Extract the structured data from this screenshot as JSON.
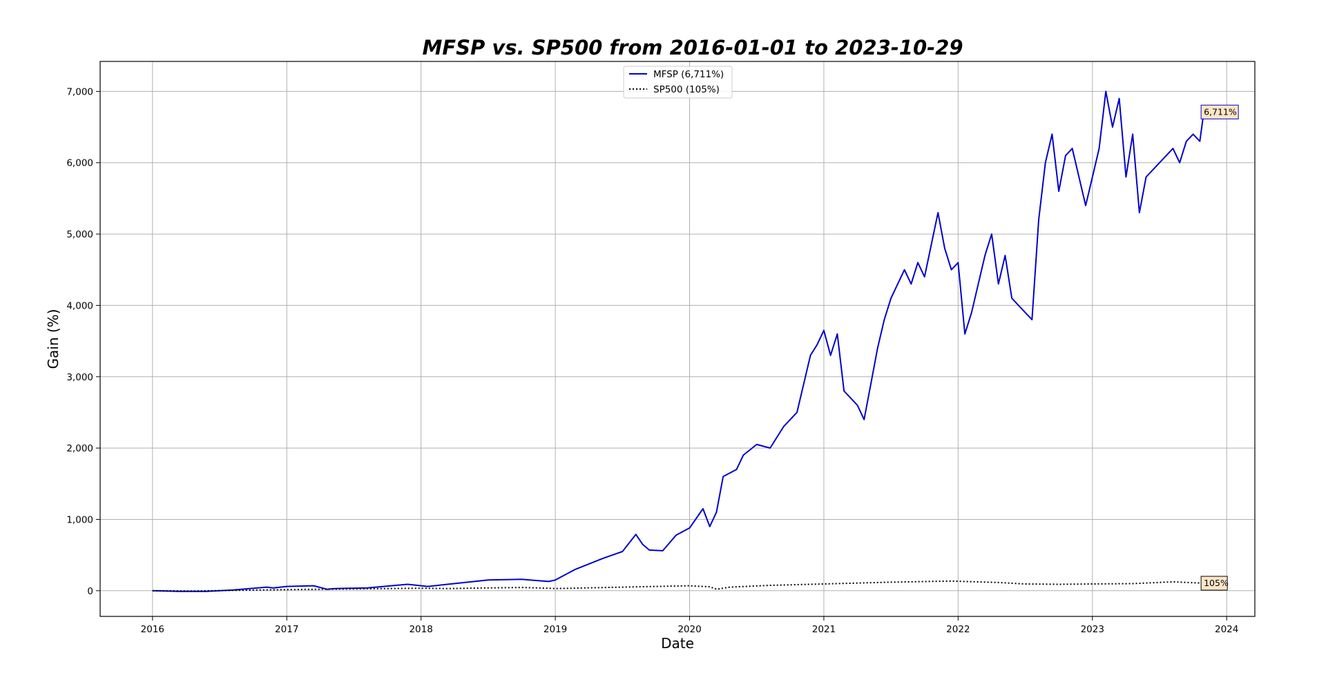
{
  "chart_data": {
    "type": "line",
    "title": "MFSP vs. SP500 from 2016-01-01 to 2023-10-29",
    "xlabel": "Date",
    "ylabel": "Gain (%)",
    "xlim": [
      2015.61,
      2024.21
    ],
    "ylim": [
      -360,
      7420
    ],
    "x_ticks": [
      2016,
      2017,
      2018,
      2019,
      2020,
      2021,
      2022,
      2023,
      2024
    ],
    "x_tick_labels": [
      "2016",
      "2017",
      "2018",
      "2019",
      "2020",
      "2021",
      "2022",
      "2023",
      "2024"
    ],
    "y_ticks": [
      0,
      1000,
      2000,
      3000,
      4000,
      5000,
      6000,
      7000
    ],
    "y_tick_labels": [
      "0",
      "1,000",
      "2,000",
      "3,000",
      "4,000",
      "5,000",
      "6,000",
      "7,000"
    ],
    "grid": true,
    "legend_position": "top-center",
    "series": [
      {
        "name": "MFSP (6,711%)",
        "color": "#0000cc",
        "style": "solid",
        "final_label": "6,711%",
        "x": [
          2016.0,
          2016.2,
          2016.4,
          2016.6,
          2016.85,
          2016.9,
          2017.0,
          2017.2,
          2017.3,
          2017.35,
          2017.6,
          2017.9,
          2018.05,
          2018.3,
          2018.5,
          2018.75,
          2018.95,
          2019.0,
          2019.15,
          2019.35,
          2019.5,
          2019.6,
          2019.65,
          2019.7,
          2019.8,
          2019.9,
          2020.0,
          2020.1,
          2020.15,
          2020.2,
          2020.25,
          2020.35,
          2020.4,
          2020.5,
          2020.6,
          2020.7,
          2020.8,
          2020.9,
          2020.95,
          2021.0,
          2021.05,
          2021.1,
          2021.15,
          2021.2,
          2021.25,
          2021.3,
          2021.35,
          2021.4,
          2021.45,
          2021.5,
          2021.6,
          2021.65,
          2021.7,
          2021.75,
          2021.85,
          2021.9,
          2021.95,
          2022.0,
          2022.05,
          2022.1,
          2022.2,
          2022.25,
          2022.3,
          2022.35,
          2022.4,
          2022.5,
          2022.55,
          2022.6,
          2022.65,
          2022.7,
          2022.75,
          2022.8,
          2022.85,
          2022.9,
          2022.95,
          2023.0,
          2023.05,
          2023.1,
          2023.15,
          2023.2,
          2023.25,
          2023.3,
          2023.35,
          2023.4,
          2023.5,
          2023.6,
          2023.65,
          2023.7,
          2023.75,
          2023.8,
          2023.83
        ],
        "values": [
          0,
          -10,
          -10,
          10,
          50,
          40,
          60,
          70,
          20,
          30,
          40,
          90,
          60,
          110,
          150,
          160,
          130,
          150,
          300,
          450,
          550,
          790,
          650,
          570,
          560,
          780,
          880,
          1150,
          900,
          1100,
          1600,
          1700,
          1900,
          2050,
          2000,
          2300,
          2500,
          3300,
          3450,
          3650,
          3300,
          3600,
          2800,
          2700,
          2600,
          2400,
          2900,
          3400,
          3800,
          4100,
          4500,
          4300,
          4600,
          4400,
          5300,
          4800,
          4500,
          4600,
          3600,
          3900,
          4700,
          5000,
          4300,
          4700,
          4100,
          3900,
          3800,
          5200,
          6000,
          6400,
          5600,
          6100,
          6200,
          5800,
          5400,
          5800,
          6200,
          7000,
          6500,
          6900,
          5800,
          6400,
          5300,
          5800,
          6000,
          6200,
          6000,
          6300,
          6400,
          6300,
          6711
        ]
      },
      {
        "name": "SP500 (105%)",
        "color": "#000000",
        "style": "dotted",
        "final_label": "105%",
        "x": [
          2016.0,
          2016.3,
          2016.6,
          2017.0,
          2017.5,
          2018.0,
          2018.2,
          2018.5,
          2018.75,
          2018.95,
          2019.0,
          2019.5,
          2020.0,
          2020.15,
          2020.2,
          2020.3,
          2020.6,
          2021.0,
          2021.5,
          2021.95,
          2022.3,
          2022.5,
          2022.75,
          2023.0,
          2023.3,
          2023.6,
          2023.83
        ],
        "values": [
          0,
          -5,
          5,
          15,
          25,
          35,
          30,
          40,
          45,
          35,
          30,
          50,
          70,
          55,
          20,
          50,
          75,
          95,
          120,
          135,
          115,
          95,
          90,
          95,
          100,
          125,
          105
        ]
      }
    ]
  }
}
